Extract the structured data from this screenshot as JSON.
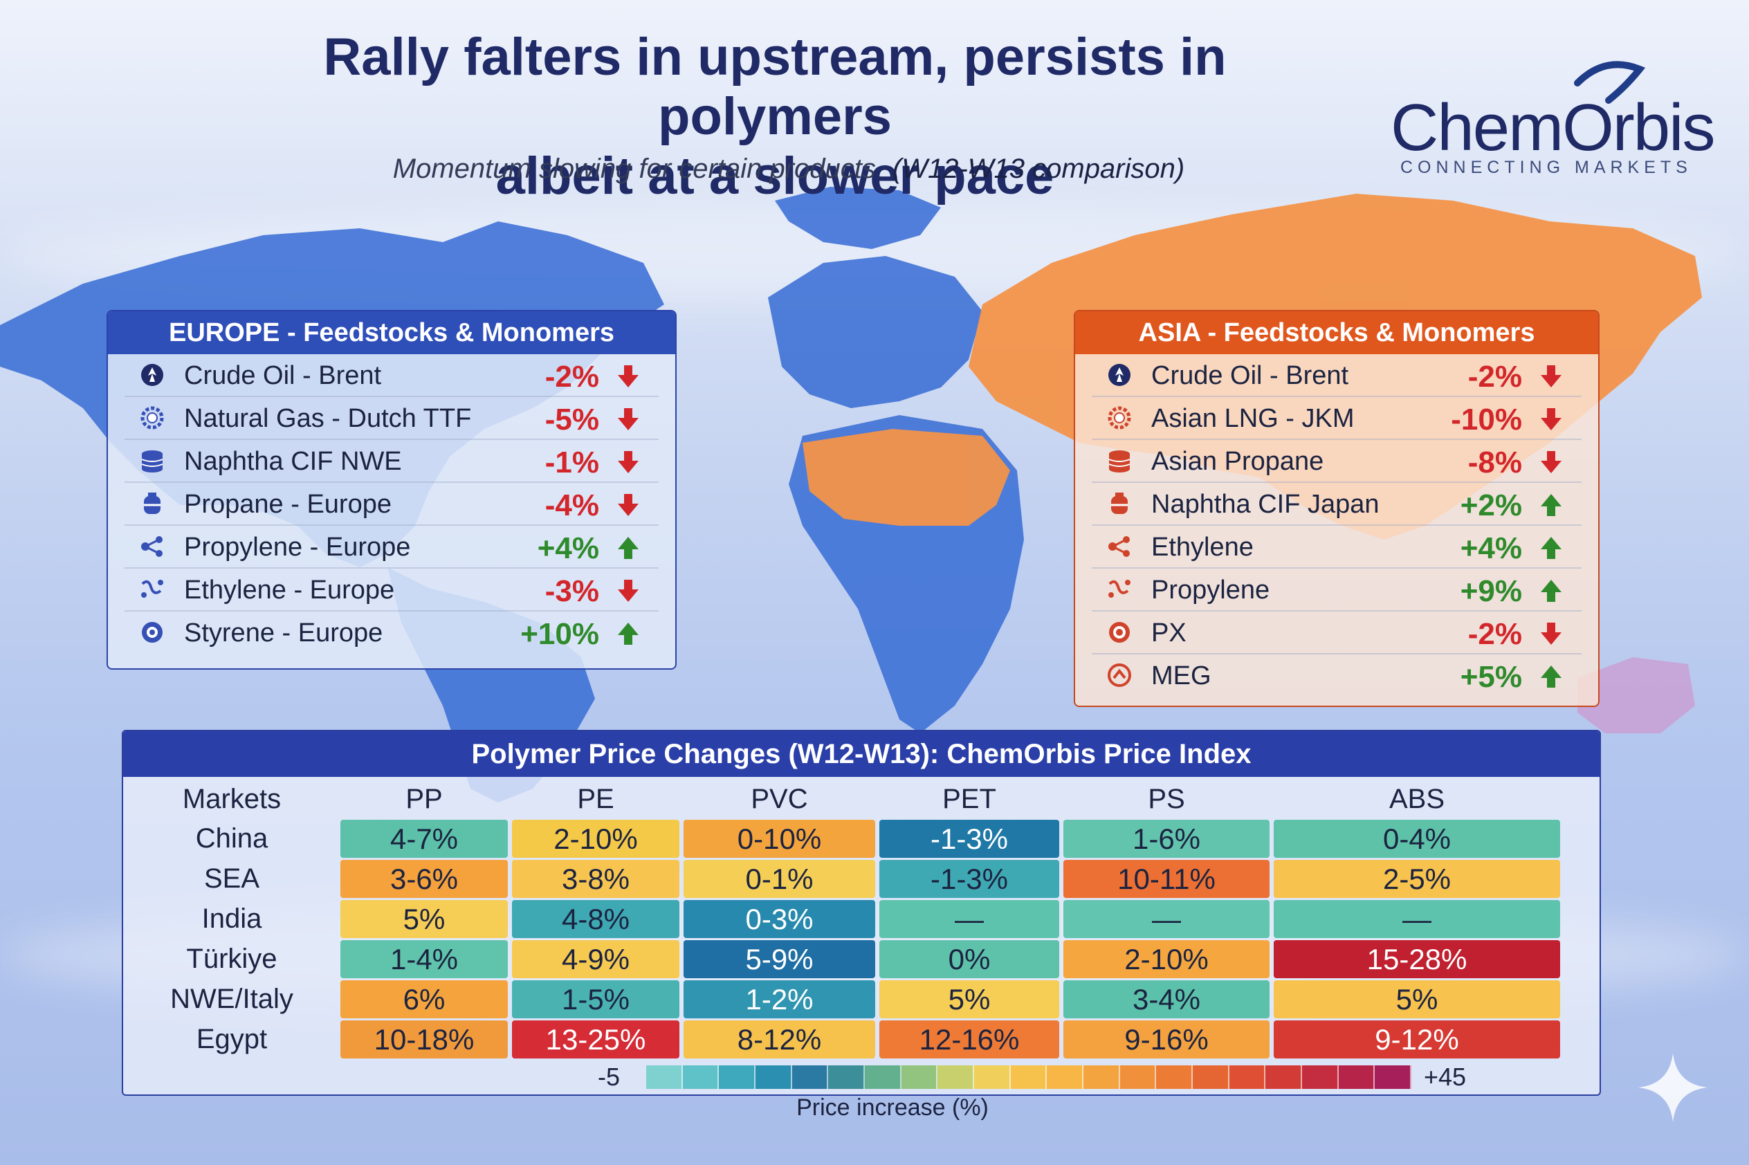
{
  "header": {
    "title_line1": "Rally falters in upstream, persists in polymers",
    "title_line2": "albeit at a slower pace",
    "subtitle": "Momentum slowing for certain products",
    "comparison": "(W12-W13 comparison)"
  },
  "logo": {
    "word": "ChemOrbis",
    "tagline": "CONNECTING MARKETS"
  },
  "colors": {
    "europe_accent": "#2e4eb8",
    "asia_accent": "#e0571e",
    "negative": "#d3262b",
    "positive": "#2f8a2c",
    "map_blue": "#3f72d6",
    "map_orange": "#f3944a"
  },
  "europe": {
    "heading": "EUROPE - Feedstocks & Monomers",
    "items": [
      {
        "icon": "crude-oil-icon",
        "name": "Crude Oil - Brent",
        "change": "-2%",
        "direction": "down"
      },
      {
        "icon": "natural-gas-icon",
        "name": "Natural Gas - Dutch TTF",
        "change": "-5%",
        "direction": "down"
      },
      {
        "icon": "barrel-icon",
        "name": "Naphtha CIF NWE",
        "change": "-1%",
        "direction": "down"
      },
      {
        "icon": "propane-tank-icon",
        "name": "Propane - Europe",
        "change": "-4%",
        "direction": "down"
      },
      {
        "icon": "molecule-icon",
        "name": "Propylene - Europe",
        "change": "+4%",
        "direction": "up"
      },
      {
        "icon": "ethylene-molecule-icon",
        "name": "Ethylene - Europe",
        "change": "-3%",
        "direction": "down"
      },
      {
        "icon": "styrene-ring-icon",
        "name": "Styrene - Europe",
        "change": "+10%",
        "direction": "up"
      }
    ]
  },
  "asia": {
    "heading": "ASIA - Feedstocks & Monomers",
    "items": [
      {
        "icon": "crude-oil-icon",
        "name": "Crude Oil - Brent",
        "change": "-2%",
        "direction": "down"
      },
      {
        "icon": "gear-icon",
        "name": "Asian LNG - JKM",
        "change": "-10%",
        "direction": "down"
      },
      {
        "icon": "barrel-icon",
        "name": "Asian Propane",
        "change": "-8%",
        "direction": "down"
      },
      {
        "icon": "propane-tank-icon",
        "name": "Naphtha CIF Japan",
        "change": "+2%",
        "direction": "up"
      },
      {
        "icon": "molecule-icon",
        "name": "Ethylene",
        "change": "+4%",
        "direction": "up"
      },
      {
        "icon": "ethylene-molecule-icon",
        "name": "Propylene",
        "change": "+9%",
        "direction": "up"
      },
      {
        "icon": "target-icon",
        "name": "PX",
        "change": "-2%",
        "direction": "down"
      },
      {
        "icon": "meg-icon",
        "name": "MEG",
        "change": "+5%",
        "direction": "up"
      }
    ]
  },
  "chart_data": {
    "type": "table",
    "title": "Polymer Price Changes (W12-W13): ChemOrbis Price Index",
    "columns": [
      "Markets",
      "PP",
      "PE",
      "PVC",
      "PET",
      "PS",
      "ABS"
    ],
    "rows": [
      {
        "market": "China",
        "cells": [
          {
            "text": "4-7%",
            "color": "#5cc1a8"
          },
          {
            "text": "2-10%",
            "color": "#f5c948"
          },
          {
            "text": "0-10%",
            "color": "#f4a43c"
          },
          {
            "text": "-1-3%",
            "color": "#1f78a6",
            "light": true
          },
          {
            "text": "1-6%",
            "color": "#62c4ad"
          },
          {
            "text": "0-4%",
            "color": "#5dc2a8"
          }
        ]
      },
      {
        "market": "SEA",
        "cells": [
          {
            "text": "3-6%",
            "color": "#f5a13c"
          },
          {
            "text": "3-8%",
            "color": "#f7c44f"
          },
          {
            "text": "0-1%",
            "color": "#f5cf55"
          },
          {
            "text": "-1-3%",
            "color": "#3fa9b3"
          },
          {
            "text": "10-11%",
            "color": "#ec6f33"
          },
          {
            "text": "2-5%",
            "color": "#f7c24d"
          }
        ]
      },
      {
        "market": "India",
        "cells": [
          {
            "text": "5%",
            "color": "#f6cd55"
          },
          {
            "text": "4-8%",
            "color": "#3ea8b3"
          },
          {
            "text": "0-3%",
            "color": "#2689ad",
            "light": true
          },
          {
            "text": "—",
            "color": "#5ec3ad"
          },
          {
            "text": "—",
            "color": "#62c5b0"
          },
          {
            "text": "—",
            "color": "#5ec3ad"
          }
        ]
      },
      {
        "market": "Türkiye",
        "cells": [
          {
            "text": "1-4%",
            "color": "#60c3ab"
          },
          {
            "text": "4-9%",
            "color": "#f6c951"
          },
          {
            "text": "5-9%",
            "color": "#1f6fa4",
            "light": true
          },
          {
            "text": "0%",
            "color": "#5ec2ab"
          },
          {
            "text": "2-10%",
            "color": "#f5a63f"
          },
          {
            "text": "15-28%",
            "color": "#c0202f",
            "light": true
          }
        ]
      },
      {
        "market": "NWE/Italy",
        "cells": [
          {
            "text": "6%",
            "color": "#f5a43d"
          },
          {
            "text": "1-5%",
            "color": "#4ab3b2"
          },
          {
            "text": "1-2%",
            "color": "#2f95b0",
            "light": true
          },
          {
            "text": "5%",
            "color": "#f6cd55"
          },
          {
            "text": "3-4%",
            "color": "#5cc1aa"
          },
          {
            "text": "5%",
            "color": "#f7c24d"
          }
        ]
      },
      {
        "market": "Egypt",
        "cells": [
          {
            "text": "10-18%",
            "color": "#f19a3c"
          },
          {
            "text": "13-25%",
            "color": "#d52c36",
            "light": true
          },
          {
            "text": "8-12%",
            "color": "#f6c24c"
          },
          {
            "text": "12-16%",
            "color": "#ee7a35"
          },
          {
            "text": "9-16%",
            "color": "#f4a13f"
          },
          {
            "text": "9-12%",
            "color": "#d63a33",
            "light": true
          }
        ]
      }
    ],
    "scale_min": "-5",
    "scale_max": "+45",
    "scale_label": "Price increase (%)",
    "scale_colors": [
      "#7fd1cf",
      "#5fc2c8",
      "#3ea8bd",
      "#2a8fb0",
      "#2a7aa3",
      "#3c8e98",
      "#62b08d",
      "#93c47f",
      "#c7d06d",
      "#f0cf5b",
      "#f6c24c",
      "#f7b645",
      "#f4a43f",
      "#f0903a",
      "#ec7b36",
      "#e66633",
      "#de4f33",
      "#d33b36",
      "#c42d3f",
      "#b62449",
      "#a61e5a"
    ]
  }
}
